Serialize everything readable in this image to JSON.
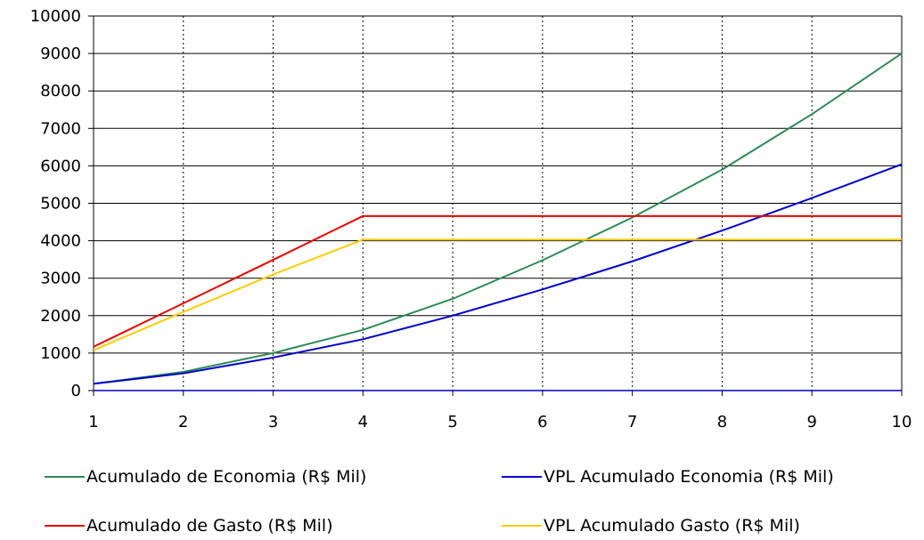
{
  "chart_data": {
    "type": "line",
    "title": "",
    "xlabel": "",
    "ylabel": "",
    "x": [
      1,
      2,
      3,
      4,
      5,
      6,
      7,
      8,
      9,
      10
    ],
    "xlim": [
      1,
      10
    ],
    "ylim": [
      0,
      10000
    ],
    "x_ticks": [
      "1",
      "2",
      "3",
      "4",
      "5",
      "6",
      "7",
      "8",
      "9",
      "10"
    ],
    "y_ticks": [
      "0",
      "1000",
      "2000",
      "3000",
      "4000",
      "5000",
      "6000",
      "7000",
      "8000",
      "9000",
      "10000"
    ],
    "grid": {
      "vertical": "dotted",
      "horizontal": "solid"
    },
    "legend_position": "bottom",
    "series": [
      {
        "name": "Acumulado de Economia (R$ Mil)",
        "color": "#2e8b57",
        "values": [
          180,
          500,
          1000,
          1620,
          2450,
          3480,
          4620,
          5900,
          7380,
          9000
        ]
      },
      {
        "name": "VPL Acumulado Economia (R$ Mil)",
        "color": "#0000cc",
        "values": [
          180,
          460,
          880,
          1370,
          2000,
          2700,
          3450,
          4270,
          5140,
          6040
        ]
      },
      {
        "name": "Acumulado de Gasto (R$ Mil)",
        "color": "#ee0000",
        "values": [
          1170,
          2330,
          3490,
          4660,
          4660,
          4660,
          4660,
          4660,
          4660,
          4660
        ]
      },
      {
        "name": "VPL Acumulado Gasto (R$ Mil)",
        "color": "#ffcc00",
        "values": [
          1080,
          2100,
          3100,
          4030,
          4030,
          4030,
          4030,
          4030,
          4030,
          4030
        ]
      }
    ]
  }
}
